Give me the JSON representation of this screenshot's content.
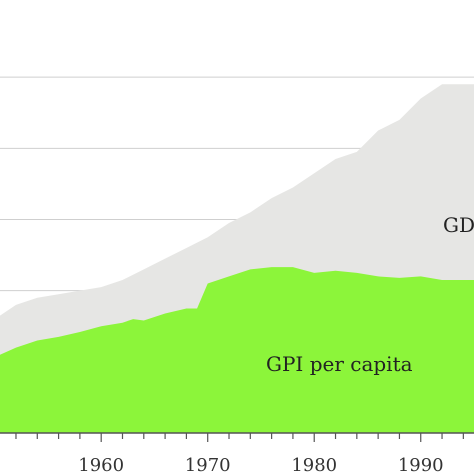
{
  "chart_data": {
    "type": "area",
    "title": "",
    "xlabel": "",
    "ylabel": "",
    "xlim": [
      1950.5,
      1995
    ],
    "ylim": [
      0,
      6
    ],
    "grid": true,
    "x_tick_labels": [
      "1960",
      "1970",
      "1980",
      "1990"
    ],
    "x_tick_values": [
      1960,
      1970,
      1980,
      1990
    ],
    "y_gridlines": [
      1,
      2,
      3,
      4,
      5
    ],
    "colors": {
      "gdp": "#e6e6e4",
      "gpi": "#8cf53a",
      "grid": "#cfcfcf",
      "axis": "#555555"
    },
    "series": [
      {
        "name": "GDP per capita",
        "label_visible": "GD",
        "x": [
          1950.5,
          1952,
          1954,
          1956,
          1958,
          1960,
          1962,
          1964,
          1966,
          1968,
          1970,
          1972,
          1974,
          1976,
          1978,
          1980,
          1982,
          1984,
          1986,
          1988,
          1990,
          1992,
          1995
        ],
        "values": [
          1.65,
          1.8,
          1.9,
          1.95,
          2.0,
          2.05,
          2.15,
          2.3,
          2.45,
          2.6,
          2.75,
          2.95,
          3.1,
          3.3,
          3.45,
          3.65,
          3.85,
          3.95,
          4.25,
          4.4,
          4.7,
          4.9,
          4.9
        ]
      },
      {
        "name": "GPI per capita",
        "label_visible": "GPI per capita",
        "x": [
          1950.5,
          1952,
          1954,
          1956,
          1958,
          1960,
          1962,
          1963,
          1964,
          1966,
          1968,
          1969,
          1970,
          1972,
          1974,
          1976,
          1978,
          1980,
          1982,
          1984,
          1986,
          1988,
          1990,
          1992,
          1995
        ],
        "values": [
          1.1,
          1.2,
          1.3,
          1.35,
          1.42,
          1.5,
          1.55,
          1.6,
          1.58,
          1.68,
          1.75,
          1.75,
          2.1,
          2.2,
          2.3,
          2.33,
          2.33,
          2.25,
          2.28,
          2.25,
          2.2,
          2.18,
          2.2,
          2.15,
          2.15
        ]
      }
    ]
  }
}
